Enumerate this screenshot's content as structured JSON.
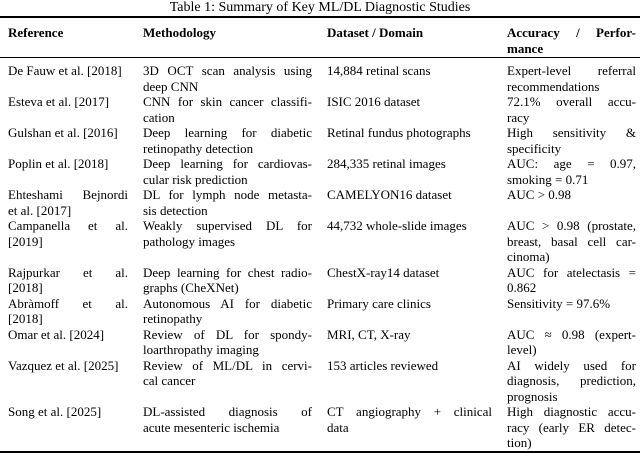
{
  "title": "Table 1: Summary of Key ML/DL Diagnostic Studies",
  "rule_color": "#000000",
  "table": {
    "columns": [
      "reference",
      "methodology",
      "dataset",
      "accuracy"
    ],
    "headers": {
      "reference": [
        "Reference"
      ],
      "methodology": [
        "Methodology"
      ],
      "dataset": [
        "Dataset / Domain"
      ],
      "accuracy": [
        "Accuracy / Perfor-",
        "mance"
      ]
    },
    "rows": [
      {
        "reference": [
          "De Fauw et al. [2018]"
        ],
        "methodology": [
          "3D OCT scan analysis using",
          "deep CNN"
        ],
        "dataset": [
          "14,884 retinal scans"
        ],
        "accuracy": [
          "Expert-level referral",
          "recommendations"
        ]
      },
      {
        "reference": [
          "Esteva et al. [2017]"
        ],
        "methodology": [
          "CNN for skin cancer classifi-",
          "cation"
        ],
        "dataset": [
          "ISIC 2016 dataset"
        ],
        "accuracy": [
          "72.1% overall accu-",
          "racy"
        ]
      },
      {
        "reference": [
          "Gulshan et al. [2016]"
        ],
        "methodology": [
          "Deep learning for diabetic",
          "retinopathy detection"
        ],
        "dataset": [
          "Retinal fundus photographs"
        ],
        "accuracy": [
          "High sensitivity &",
          "specificity"
        ]
      },
      {
        "reference": [
          "Poplin et al. [2018]"
        ],
        "methodology": [
          "Deep learning for cardiovas-",
          "cular risk prediction"
        ],
        "dataset": [
          "284,335 retinal images"
        ],
        "accuracy": [
          "AUC: age = 0.97,",
          "smoking = 0.71"
        ]
      },
      {
        "reference": [
          "Ehteshami Bejnordi",
          "et al. [2017]"
        ],
        "methodology": [
          "DL for lymph node metasta-",
          "sis detection"
        ],
        "dataset": [
          "CAMELYON16 dataset"
        ],
        "accuracy": [
          "AUC > 0.98"
        ]
      },
      {
        "reference": [
          "Campanella et al.",
          "[2019]"
        ],
        "methodology": [
          "Weakly supervised DL for",
          "pathology images"
        ],
        "dataset": [
          "44,732 whole-slide images"
        ],
        "accuracy": [
          "AUC > 0.98 (prostate,",
          "breast, basal cell car-",
          "cinoma)"
        ]
      },
      {
        "reference": [
          "Rajpurkar et al.",
          "[2018]"
        ],
        "methodology": [
          "Deep learning for chest radio-",
          "graphs (CheXNet)"
        ],
        "dataset": [
          "ChestX-ray14 dataset"
        ],
        "accuracy": [
          "AUC for atelectasis =",
          "0.862"
        ]
      },
      {
        "reference": [
          "Abràmoff et al.",
          "[2018]"
        ],
        "methodology": [
          "Autonomous AI for diabetic",
          "retinopathy"
        ],
        "dataset": [
          "Primary care clinics"
        ],
        "accuracy": [
          "Sensitivity = 97.6%"
        ]
      },
      {
        "reference": [
          "Omar et al. [2024]"
        ],
        "methodology": [
          "Review of DL for spondy-",
          "loarthropathy imaging"
        ],
        "dataset": [
          "MRI, CT, X-ray"
        ],
        "accuracy": [
          "AUC ≈ 0.98 (expert-",
          "level)"
        ]
      },
      {
        "reference": [
          "Vazquez et al. [2025]"
        ],
        "methodology": [
          "Review of ML/DL in cervi-",
          "cal cancer"
        ],
        "dataset": [
          "153 articles reviewed"
        ],
        "accuracy": [
          "AI widely used for",
          "diagnosis, prediction,",
          "prognosis"
        ]
      },
      {
        "reference": [
          "Song et al. [2025]"
        ],
        "methodology": [
          "DL-assisted diagnosis of",
          "acute mesenteric ischemia"
        ],
        "dataset": [
          "CT angiography + clinical",
          "data"
        ],
        "accuracy": [
          "High diagnostic accu-",
          "racy (early ER detec-",
          "tion)"
        ]
      }
    ]
  }
}
